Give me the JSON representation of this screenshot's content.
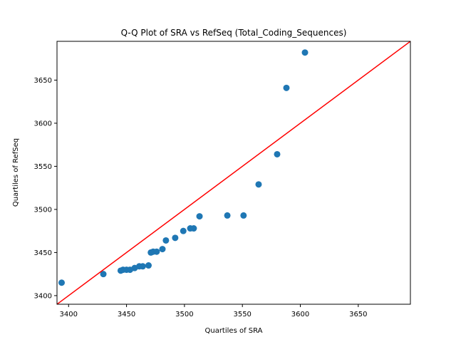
{
  "chart_data": {
    "type": "scatter",
    "title": "Q-Q Plot of SRA vs RefSeq (Total_Coding_Sequences)",
    "xlabel": "Quartiles of SRA",
    "ylabel": "Quartiles of RefSeq",
    "xlim": [
      3390,
      3695
    ],
    "ylim": [
      3390,
      3695
    ],
    "xticks": [
      3400,
      3450,
      3500,
      3550,
      3600,
      3650
    ],
    "yticks": [
      3400,
      3450,
      3500,
      3550,
      3600,
      3650
    ],
    "grid": false,
    "marker_color": "#1f77b4",
    "reference_line": {
      "color": "#ff0000",
      "slope": 1,
      "intercept": 0
    },
    "points": [
      {
        "x": 3394,
        "y": 3415
      },
      {
        "x": 3430,
        "y": 3425
      },
      {
        "x": 3445,
        "y": 3429
      },
      {
        "x": 3447,
        "y": 3430
      },
      {
        "x": 3450,
        "y": 3430
      },
      {
        "x": 3453,
        "y": 3430
      },
      {
        "x": 3457,
        "y": 3432
      },
      {
        "x": 3461,
        "y": 3434
      },
      {
        "x": 3464,
        "y": 3434
      },
      {
        "x": 3469,
        "y": 3435
      },
      {
        "x": 3471,
        "y": 3450
      },
      {
        "x": 3473,
        "y": 3451
      },
      {
        "x": 3476,
        "y": 3451
      },
      {
        "x": 3481,
        "y": 3454
      },
      {
        "x": 3484,
        "y": 3464
      },
      {
        "x": 3492,
        "y": 3467
      },
      {
        "x": 3499,
        "y": 3475
      },
      {
        "x": 3505,
        "y": 3478
      },
      {
        "x": 3508,
        "y": 3478
      },
      {
        "x": 3513,
        "y": 3492
      },
      {
        "x": 3537,
        "y": 3493
      },
      {
        "x": 3551,
        "y": 3493
      },
      {
        "x": 3564,
        "y": 3529
      },
      {
        "x": 3580,
        "y": 3564
      },
      {
        "x": 3588,
        "y": 3641
      },
      {
        "x": 3604,
        "y": 3682
      }
    ]
  }
}
